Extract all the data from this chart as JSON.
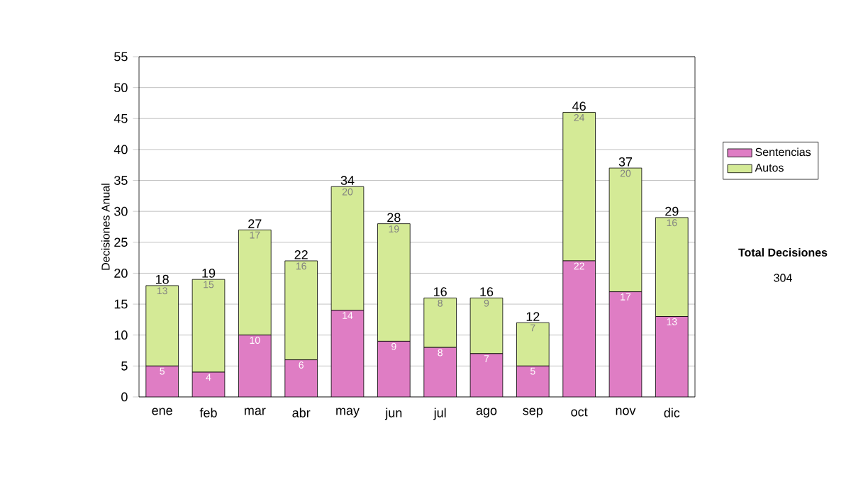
{
  "chart_data": {
    "type": "bar",
    "ylabel": "Decisiones Anual",
    "categories": [
      "ene",
      "feb",
      "mar",
      "abr",
      "may",
      "jun",
      "jul",
      "ago",
      "sep",
      "oct",
      "nov",
      "dic"
    ],
    "series": [
      {
        "name": "Sentencias",
        "color": "#df7dc4",
        "values": [
          5,
          4,
          10,
          6,
          14,
          9,
          8,
          7,
          5,
          22,
          17,
          13
        ]
      },
      {
        "name": "Autos",
        "color": "#d4ea96",
        "values": [
          13,
          15,
          17,
          16,
          20,
          19,
          8,
          9,
          7,
          24,
          20,
          16
        ]
      }
    ],
    "stacked": true,
    "ylim": [
      0,
      55
    ],
    "yticks": [
      0,
      5,
      10,
      15,
      20,
      25,
      30,
      35,
      40,
      45,
      50,
      55
    ],
    "grid": "y",
    "legend": "right",
    "data_labels": true,
    "totals": [
      "18",
      "19",
      "27",
      "22",
      "34",
      "28",
      "16",
      "16",
      "12",
      "46",
      "37",
      "29"
    ],
    "annotations": [
      "Total Decisiones",
      "304"
    ]
  }
}
